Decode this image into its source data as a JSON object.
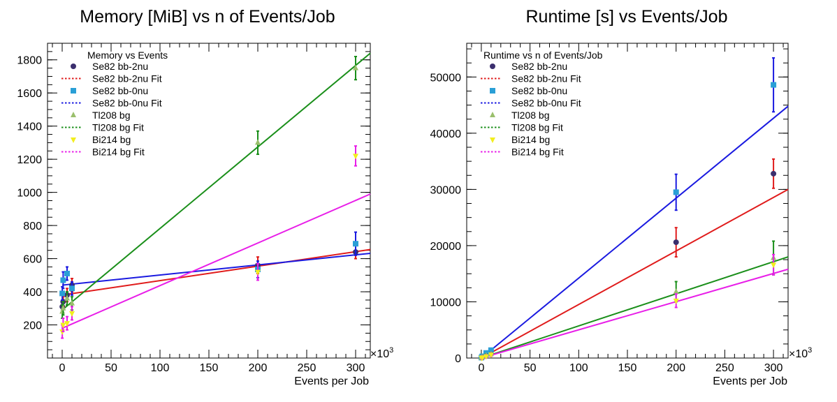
{
  "chart_data": [
    {
      "type": "scatter",
      "title": "Memory [MiB] vs n of Events/Job",
      "xlabel": "Events per Job",
      "ylabel": "",
      "x_exponent_label": "×10",
      "x_exponent": "3",
      "xlim": [
        -15,
        315
      ],
      "ylim": [
        0,
        1900
      ],
      "xticks": [
        0,
        50,
        100,
        150,
        200,
        250,
        300
      ],
      "yticks": [
        200,
        400,
        600,
        800,
        1000,
        1200,
        1400,
        1600,
        1800
      ],
      "legend_title": "Memory vs Events",
      "legend_position": "top-left",
      "series": [
        {
          "name": "Se82 bb-2nu",
          "marker": "circle",
          "color": "#3b2f6e",
          "err_color": "#e01b1b",
          "points": [
            [
              0.1,
              310,
              30
            ],
            [
              1,
              340,
              30
            ],
            [
              5,
              380,
              40
            ],
            [
              10,
              440,
              40
            ],
            [
              200,
              560,
              50
            ],
            [
              300,
              640,
              40
            ]
          ]
        },
        {
          "name": "Se82 bb-2nu Fit",
          "line": true,
          "dash": true,
          "color": "#e01b1b",
          "fit": [
            [
              0,
              380
            ],
            [
              315,
              655
            ]
          ]
        },
        {
          "name": "Se82 bb-0nu",
          "marker": "square",
          "color": "#2a9fd6",
          "err_color": "#1a1ae0",
          "points": [
            [
              0.1,
              390,
              40
            ],
            [
              1,
              470,
              50
            ],
            [
              5,
              510,
              40
            ],
            [
              10,
              420,
              40
            ],
            [
              200,
              535,
              50
            ],
            [
              300,
              690,
              70
            ]
          ]
        },
        {
          "name": "Se82 bb-0nu Fit",
          "line": true,
          "dash": true,
          "color": "#1a1ae0",
          "fit": [
            [
              0,
              440
            ],
            [
              315,
              632
            ]
          ]
        },
        {
          "name": "Tl208 bg",
          "marker": "triangle-up",
          "color": "#9abf6c",
          "err_color": "#1a8f1a",
          "points": [
            [
              0.1,
              280,
              40
            ],
            [
              1,
              300,
              40
            ],
            [
              5,
              360,
              40
            ],
            [
              10,
              330,
              40
            ],
            [
              200,
              1300,
              70
            ],
            [
              300,
              1750,
              70
            ]
          ]
        },
        {
          "name": "Tl208 bg Fit",
          "line": true,
          "dash": true,
          "color": "#1a8f1a",
          "fit": [
            [
              0,
              290
            ],
            [
              315,
              1840
            ]
          ]
        },
        {
          "name": "Bi214 bg",
          "marker": "triangle-down",
          "color": "#f2ee1e",
          "err_color": "#e81ee8",
          "points": [
            [
              0.1,
              160,
              40
            ],
            [
              1,
              200,
              40
            ],
            [
              5,
              210,
              40
            ],
            [
              10,
              270,
              40
            ],
            [
              200,
              520,
              50
            ],
            [
              300,
              1220,
              60
            ]
          ]
        },
        {
          "name": "Bi214 bg Fit",
          "line": true,
          "dash": true,
          "color": "#e81ee8",
          "fit": [
            [
              0,
              180
            ],
            [
              315,
              990
            ]
          ]
        }
      ]
    },
    {
      "type": "scatter",
      "title": "Runtime [s] vs Events/Job",
      "xlabel": "Events per Job",
      "ylabel": "",
      "x_exponent_label": "×10",
      "x_exponent": "3",
      "xlim": [
        -15,
        315
      ],
      "ylim": [
        0,
        56000
      ],
      "xticks": [
        0,
        50,
        100,
        150,
        200,
        250,
        300
      ],
      "yticks": [
        0,
        10000,
        20000,
        30000,
        40000,
        50000
      ],
      "legend_title": "Runtime vs n of Events/Job",
      "legend_position": "top-left",
      "series": [
        {
          "name": "Se82 bb-2nu",
          "marker": "circle",
          "color": "#3b2f6e",
          "err_color": "#e01b1b",
          "points": [
            [
              0.1,
              60,
              200
            ],
            [
              1,
              200,
              300
            ],
            [
              5,
              600,
              300
            ],
            [
              10,
              1200,
              300
            ],
            [
              200,
              20600,
              2600
            ],
            [
              300,
              32800,
              2600
            ]
          ]
        },
        {
          "name": "Se82 bb-2nu Fit",
          "line": true,
          "dash": true,
          "color": "#e01b1b",
          "fit": [
            [
              0,
              0
            ],
            [
              315,
              30000
            ]
          ]
        },
        {
          "name": "Se82 bb-0nu",
          "marker": "square",
          "color": "#2a9fd6",
          "err_color": "#1a1ae0",
          "points": [
            [
              0.1,
              80,
              200
            ],
            [
              1,
              300,
              300
            ],
            [
              5,
              900,
              300
            ],
            [
              10,
              1400,
              300
            ],
            [
              200,
              29500,
              3200
            ],
            [
              300,
              48600,
              4800
            ]
          ]
        },
        {
          "name": "Se82 bb-0nu Fit",
          "line": true,
          "dash": true,
          "color": "#1a1ae0",
          "fit": [
            [
              0,
              0
            ],
            [
              315,
              44800
            ]
          ]
        },
        {
          "name": "Tl208 bg",
          "marker": "triangle-up",
          "color": "#9abf6c",
          "err_color": "#1a8f1a",
          "points": [
            [
              0.1,
              40,
              200
            ],
            [
              1,
              150,
              300
            ],
            [
              5,
              400,
              300
            ],
            [
              10,
              700,
              300
            ],
            [
              200,
              11800,
              1800
            ],
            [
              300,
              17800,
              3000
            ]
          ]
        },
        {
          "name": "Tl208 bg Fit",
          "line": true,
          "dash": true,
          "color": "#1a8f1a",
          "fit": [
            [
              0,
              0
            ],
            [
              315,
              18000
            ]
          ]
        },
        {
          "name": "Bi214 bg",
          "marker": "triangle-down",
          "color": "#f2ee1e",
          "err_color": "#e81ee8",
          "points": [
            [
              0.1,
              30,
              200
            ],
            [
              1,
              100,
              300
            ],
            [
              5,
              300,
              300
            ],
            [
              10,
              600,
              300
            ],
            [
              200,
              10200,
              1200
            ],
            [
              300,
              16600,
              1800
            ]
          ]
        },
        {
          "name": "Bi214 bg Fit",
          "line": true,
          "dash": true,
          "color": "#e81ee8",
          "fit": [
            [
              0,
              0
            ],
            [
              315,
              15800
            ]
          ]
        }
      ]
    }
  ]
}
